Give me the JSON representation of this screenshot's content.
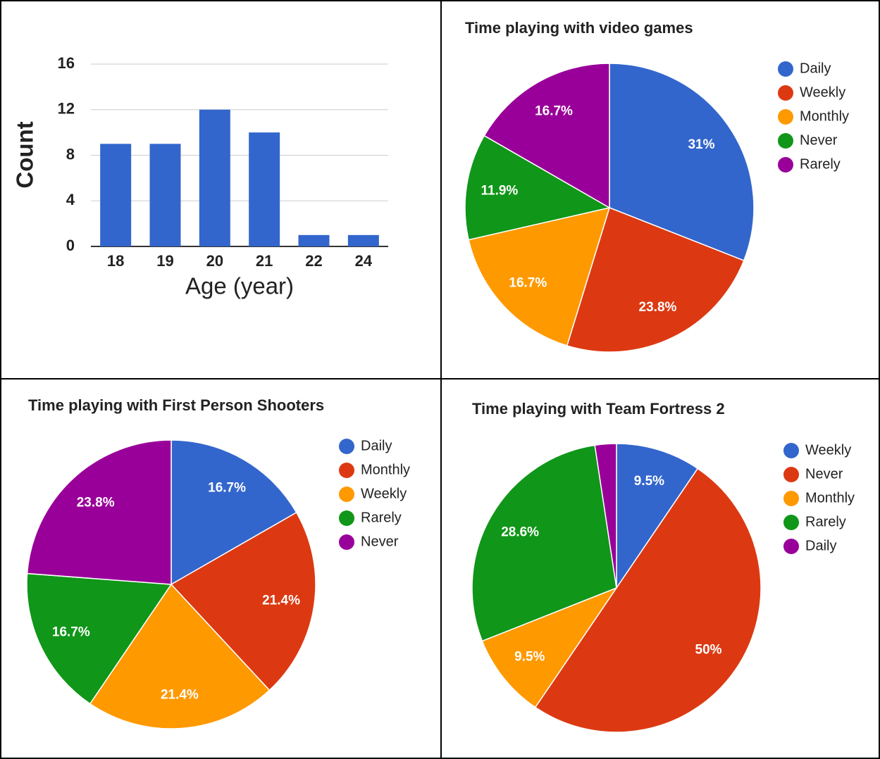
{
  "chart_data": [
    {
      "type": "bar",
      "ylabel": "Count",
      "xlabel": "Age (year)",
      "categories": [
        "18",
        "19",
        "20",
        "21",
        "22",
        "24"
      ],
      "values": [
        9,
        9,
        12,
        10,
        1,
        1
      ],
      "color": "#3366cc",
      "ylim": [
        0,
        16
      ],
      "yticks": [
        0,
        4,
        8,
        12,
        16
      ],
      "grid": true
    },
    {
      "type": "pie",
      "title": "Time playing with video games",
      "categories": [
        "Daily",
        "Weekly",
        "Monthly",
        "Never",
        "Rarely"
      ],
      "values": [
        31,
        23.8,
        16.7,
        11.9,
        16.7
      ],
      "value_labels": [
        "31%",
        "23.8%",
        "16.7%",
        "11.9%",
        "16.7%"
      ],
      "colors": [
        "#3366cc",
        "#dc3912",
        "#ff9900",
        "#109618",
        "#990099"
      ],
      "legend": "right"
    },
    {
      "type": "pie",
      "title": "Time playing with First Person Shooters",
      "categories": [
        "Daily",
        "Monthly",
        "Weekly",
        "Rarely",
        "Never"
      ],
      "values": [
        16.7,
        21.4,
        21.4,
        16.7,
        23.8
      ],
      "value_labels": [
        "16.7%",
        "21.4%",
        "21.4%",
        "16.7%",
        "23.8%"
      ],
      "colors": [
        "#3366cc",
        "#dc3912",
        "#ff9900",
        "#109618",
        "#990099"
      ],
      "legend": "right"
    },
    {
      "type": "pie",
      "title": "Time playing with Team Fortress 2",
      "categories": [
        "Weekly",
        "Never",
        "Monthly",
        "Rarely",
        "Daily"
      ],
      "values": [
        9.5,
        50,
        9.5,
        28.6,
        2.4
      ],
      "value_labels": [
        "9.5%",
        "50%",
        "9.5%",
        "28.6%",
        null
      ],
      "colors": [
        "#3366cc",
        "#dc3912",
        "#ff9900",
        "#109618",
        "#990099"
      ],
      "legend": "right"
    }
  ]
}
